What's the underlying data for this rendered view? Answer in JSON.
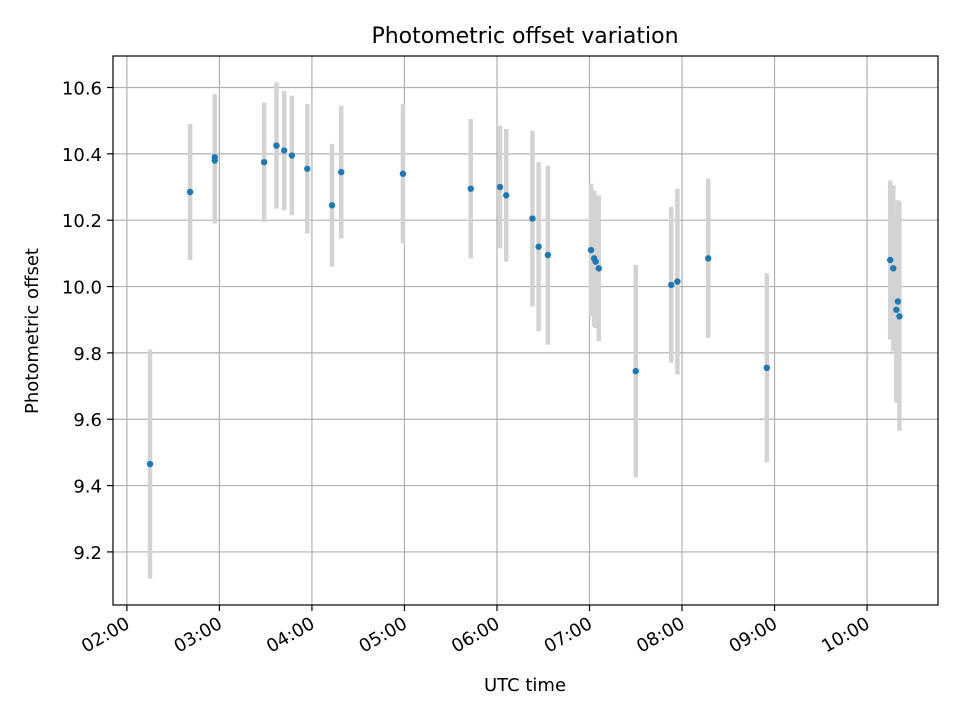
{
  "chart_data": {
    "type": "scatter",
    "title": "Photometric offset variation",
    "xlabel": "UTC time",
    "ylabel": "Photometric offset",
    "xlim": [
      "01:51",
      "10:46"
    ],
    "ylim": [
      9.04,
      10.695
    ],
    "x_ticks": [
      "02:00",
      "03:00",
      "04:00",
      "05:00",
      "06:00",
      "07:00",
      "08:00",
      "09:00",
      "10:00"
    ],
    "y_ticks": [
      "9.2",
      "9.4",
      "9.6",
      "9.8",
      "10.0",
      "10.2",
      "10.4",
      "10.6"
    ],
    "grid": true,
    "point_color": "#1f77b4",
    "errorbar_color": "#d3d3d3",
    "series": [
      {
        "points": [
          {
            "x": "02:15",
            "y": 9.465,
            "err": 0.345
          },
          {
            "x": "02:41",
            "y": 10.285,
            "err": 0.205
          },
          {
            "x": "02:57",
            "y": 10.38,
            "err": 0.19
          },
          {
            "x": "02:57",
            "y": 10.39,
            "err": 0.19
          },
          {
            "x": "03:29",
            "y": 10.375,
            "err": 0.18
          },
          {
            "x": "03:37",
            "y": 10.425,
            "err": 0.19
          },
          {
            "x": "03:42",
            "y": 10.41,
            "err": 0.18
          },
          {
            "x": "03:47",
            "y": 10.395,
            "err": 0.18
          },
          {
            "x": "03:57",
            "y": 10.355,
            "err": 0.195
          },
          {
            "x": "04:13",
            "y": 10.245,
            "err": 0.185
          },
          {
            "x": "04:19",
            "y": 10.345,
            "err": 0.2
          },
          {
            "x": "04:59",
            "y": 10.34,
            "err": 0.21
          },
          {
            "x": "05:43",
            "y": 10.295,
            "err": 0.21
          },
          {
            "x": "06:02",
            "y": 10.3,
            "err": 0.185
          },
          {
            "x": "06:06",
            "y": 10.275,
            "err": 0.2
          },
          {
            "x": "06:23",
            "y": 10.205,
            "err": 0.265
          },
          {
            "x": "06:27",
            "y": 10.12,
            "err": 0.255
          },
          {
            "x": "06:33",
            "y": 10.095,
            "err": 0.27
          },
          {
            "x": "07:01",
            "y": 10.11,
            "err": 0.2
          },
          {
            "x": "07:03",
            "y": 10.085,
            "err": 0.205
          },
          {
            "x": "07:04",
            "y": 10.075,
            "err": 0.2
          },
          {
            "x": "07:06",
            "y": 10.055,
            "err": 0.22
          },
          {
            "x": "07:30",
            "y": 9.745,
            "err": 0.32
          },
          {
            "x": "07:53",
            "y": 10.005,
            "err": 0.235
          },
          {
            "x": "07:57",
            "y": 10.015,
            "err": 0.28
          },
          {
            "x": "08:17",
            "y": 10.085,
            "err": 0.24
          },
          {
            "x": "08:55",
            "y": 9.755,
            "err": 0.285
          },
          {
            "x": "10:15",
            "y": 10.08,
            "err": 0.24
          },
          {
            "x": "10:17",
            "y": 10.055,
            "err": 0.25
          },
          {
            "x": "10:19",
            "y": 9.93,
            "err": 0.28
          },
          {
            "x": "10:20",
            "y": 9.955,
            "err": 0.305
          },
          {
            "x": "10:21",
            "y": 9.91,
            "err": 0.345
          }
        ]
      }
    ]
  }
}
